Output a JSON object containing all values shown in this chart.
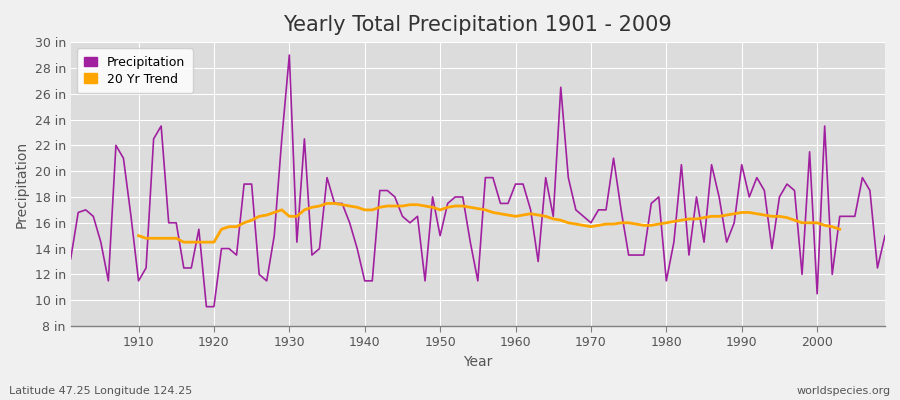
{
  "title": "Yearly Total Precipitation 1901 - 2009",
  "xlabel": "Year",
  "ylabel": "Precipitation",
  "subtitle": "Latitude 47.25 Longitude 124.25",
  "watermark": "worldspecies.org",
  "years": [
    1901,
    1902,
    1903,
    1904,
    1905,
    1906,
    1907,
    1908,
    1909,
    1910,
    1911,
    1912,
    1913,
    1914,
    1915,
    1916,
    1917,
    1918,
    1919,
    1920,
    1921,
    1922,
    1923,
    1924,
    1925,
    1926,
    1927,
    1928,
    1929,
    1930,
    1931,
    1932,
    1933,
    1934,
    1935,
    1936,
    1937,
    1938,
    1939,
    1940,
    1941,
    1942,
    1943,
    1944,
    1945,
    1946,
    1947,
    1948,
    1949,
    1950,
    1951,
    1952,
    1953,
    1954,
    1955,
    1956,
    1957,
    1958,
    1959,
    1960,
    1961,
    1962,
    1963,
    1964,
    1965,
    1966,
    1967,
    1968,
    1969,
    1970,
    1971,
    1972,
    1973,
    1974,
    1975,
    1976,
    1977,
    1978,
    1979,
    1980,
    1981,
    1982,
    1983,
    1984,
    1985,
    1986,
    1987,
    1988,
    1989,
    1990,
    1991,
    1992,
    1993,
    1994,
    1995,
    1996,
    1997,
    1998,
    1999,
    2000,
    2001,
    2002,
    2003,
    2004,
    2005,
    2006,
    2007,
    2008,
    2009
  ],
  "precip": [
    13.2,
    16.8,
    17.0,
    16.5,
    14.5,
    11.5,
    22.0,
    21.0,
    16.5,
    11.5,
    12.5,
    22.5,
    23.5,
    16.0,
    16.0,
    12.5,
    12.5,
    15.5,
    9.5,
    9.5,
    14.0,
    14.0,
    13.5,
    19.0,
    19.0,
    12.0,
    11.5,
    15.0,
    22.5,
    29.0,
    14.5,
    22.5,
    13.5,
    14.0,
    19.5,
    17.5,
    17.5,
    16.0,
    14.0,
    11.5,
    11.5,
    18.5,
    18.5,
    18.0,
    16.5,
    16.0,
    16.5,
    11.5,
    18.0,
    15.0,
    17.5,
    18.0,
    18.0,
    14.5,
    11.5,
    19.5,
    19.5,
    17.5,
    17.5,
    19.0,
    19.0,
    17.0,
    13.0,
    19.5,
    16.5,
    26.5,
    19.5,
    17.0,
    16.5,
    16.0,
    17.0,
    17.0,
    21.0,
    17.0,
    13.5,
    13.5,
    13.5,
    17.5,
    18.0,
    11.5,
    14.5,
    20.5,
    13.5,
    18.0,
    14.5,
    20.5,
    18.0,
    14.5,
    16.0,
    20.5,
    18.0,
    19.5,
    18.5,
    14.0,
    18.0,
    19.0,
    18.5,
    12.0,
    21.5,
    10.5,
    23.5,
    12.0,
    16.5,
    16.5,
    16.5,
    19.5,
    18.5,
    12.5,
    15.0
  ],
  "trend": [
    null,
    null,
    null,
    null,
    null,
    null,
    null,
    null,
    null,
    15.0,
    14.8,
    14.8,
    14.8,
    14.8,
    14.8,
    14.5,
    14.5,
    14.5,
    14.5,
    14.5,
    15.5,
    15.7,
    15.7,
    16.0,
    16.2,
    16.5,
    16.6,
    16.8,
    17.0,
    16.5,
    16.5,
    17.0,
    17.2,
    17.3,
    17.5,
    17.5,
    17.4,
    17.3,
    17.2,
    17.0,
    17.0,
    17.2,
    17.3,
    17.3,
    17.3,
    17.4,
    17.4,
    17.3,
    17.2,
    17.0,
    17.2,
    17.3,
    17.3,
    17.2,
    17.1,
    17.0,
    16.8,
    16.7,
    16.6,
    16.5,
    16.6,
    16.7,
    16.6,
    16.5,
    16.3,
    16.2,
    16.0,
    15.9,
    15.8,
    15.7,
    15.8,
    15.9,
    15.9,
    16.0,
    16.0,
    15.9,
    15.8,
    15.8,
    15.9,
    16.0,
    16.1,
    16.2,
    16.3,
    16.3,
    16.4,
    16.5,
    16.5,
    16.6,
    16.7,
    16.8,
    16.8,
    16.7,
    16.6,
    16.5,
    16.5,
    16.4,
    16.2,
    16.0,
    16.0,
    16.0,
    15.8,
    15.7,
    15.5,
    null,
    null,
    null,
    null,
    null
  ],
  "precip_color": "#A020A0",
  "trend_color": "#FFA500",
  "fig_bg_color": "#F0F0F0",
  "plot_bg_color": "#DCDCDC",
  "grid_color": "#FFFFFF",
  "bottom_spine_color": "#808080",
  "text_color": "#555555",
  "ylim": [
    8,
    30
  ],
  "xlim": [
    1901,
    2009
  ],
  "yticks": [
    8,
    10,
    12,
    14,
    16,
    18,
    20,
    22,
    24,
    26,
    28,
    30
  ],
  "ytick_labels": [
    "8 in",
    "10 in",
    "12 in",
    "14 in",
    "16 in",
    "18 in",
    "20 in",
    "22 in",
    "24 in",
    "26 in",
    "28 in",
    "30 in"
  ],
  "xticks": [
    1910,
    1920,
    1930,
    1940,
    1950,
    1960,
    1970,
    1980,
    1990,
    2000
  ],
  "title_fontsize": 15,
  "axis_label_fontsize": 10,
  "tick_fontsize": 9,
  "legend_fontsize": 9,
  "subtitle_fontsize": 8,
  "precip_linewidth": 1.2,
  "trend_linewidth": 2.0
}
